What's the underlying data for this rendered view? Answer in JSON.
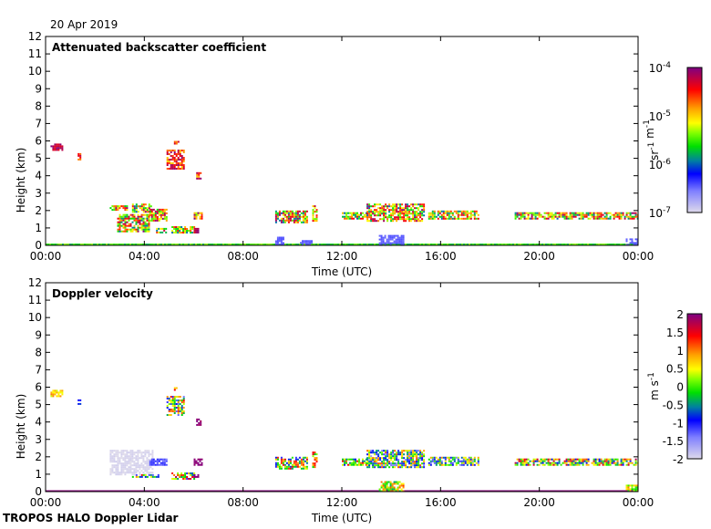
{
  "header": {
    "date": "20 Apr 2019"
  },
  "footer": {
    "instrument": "TROPOS HALO Doppler Lidar"
  },
  "chart_data": [
    {
      "type": "heatmap",
      "title": "Attenuated backscatter coefficient",
      "xlabel": "Time (UTC)",
      "ylabel": "Height (km)",
      "xlim": [
        0,
        24
      ],
      "ylim": [
        0,
        12
      ],
      "xticks": [
        0,
        4,
        8,
        12,
        16,
        20,
        24
      ],
      "xtick_labels": [
        "00:00",
        "04:00",
        "08:00",
        "12:00",
        "16:00",
        "20:00",
        "00:00"
      ],
      "yticks": [
        0,
        1,
        2,
        3,
        4,
        5,
        6,
        7,
        8,
        9,
        10,
        11,
        12
      ],
      "colorbar": {
        "label": "sr-1 m-1",
        "scale": "log",
        "range": [
          -7,
          -4
        ],
        "tick_labels": [
          {
            "base": "10",
            "exp": "-4",
            "v": -4
          },
          {
            "base": "10",
            "exp": "-5",
            "v": -5
          },
          {
            "base": "10",
            "exp": "-6",
            "v": -6
          },
          {
            "base": "10",
            "exp": "-7",
            "v": -7
          }
        ]
      },
      "patches": [
        {
          "t": [
            0.2,
            0.7
          ],
          "h": [
            5.5,
            5.85
          ],
          "v": [
            -4.4,
            -4.0
          ]
        },
        {
          "t": [
            1.3,
            1.4
          ],
          "h": [
            4.9,
            5.3
          ],
          "v": [
            -4.8,
            -4.2
          ]
        },
        {
          "t": [
            2.6,
            3.3
          ],
          "h": [
            2.0,
            2.3
          ],
          "v": [
            -5.8,
            -4.0
          ]
        },
        {
          "t": [
            2.9,
            4.2
          ],
          "h": [
            0.8,
            1.8
          ],
          "v": [
            -6.0,
            -4.0
          ]
        },
        {
          "t": [
            3.5,
            4.3
          ],
          "h": [
            1.9,
            2.4
          ],
          "v": [
            -6.0,
            -4.0
          ]
        },
        {
          "t": [
            4.2,
            4.9
          ],
          "h": [
            1.4,
            2.1
          ],
          "v": [
            -5.8,
            -4.0
          ]
        },
        {
          "t": [
            4.4,
            4.9
          ],
          "h": [
            0.7,
            1.0
          ],
          "v": [
            -6.0,
            -4.2
          ]
        },
        {
          "t": [
            4.9,
            5.6
          ],
          "h": [
            4.4,
            5.5
          ],
          "v": [
            -5.0,
            -4.0
          ]
        },
        {
          "t": [
            5.2,
            5.4
          ],
          "h": [
            5.8,
            6.0
          ],
          "v": [
            -4.8,
            -4.2
          ]
        },
        {
          "t": [
            5.1,
            6.0
          ],
          "h": [
            0.7,
            1.1
          ],
          "v": [
            -6.0,
            -4.2
          ]
        },
        {
          "t": [
            6.0,
            6.2
          ],
          "h": [
            0.7,
            1.0
          ],
          "v": [
            -4.3,
            -4.0
          ]
        },
        {
          "t": [
            6.0,
            6.3
          ],
          "h": [
            1.5,
            1.9
          ],
          "v": [
            -5.5,
            -4.0
          ]
        },
        {
          "t": [
            6.1,
            6.3
          ],
          "h": [
            3.8,
            4.2
          ],
          "v": [
            -5.0,
            -4.0
          ]
        },
        {
          "t": [
            9.3,
            10.6
          ],
          "h": [
            1.3,
            2.0
          ],
          "v": [
            -6.0,
            -4.0
          ]
        },
        {
          "t": [
            10.8,
            11.0
          ],
          "h": [
            1.4,
            2.3
          ],
          "v": [
            -5.5,
            -4.2
          ]
        },
        {
          "t": [
            12.0,
            13.0
          ],
          "h": [
            1.5,
            1.9
          ],
          "v": [
            -6.0,
            -4.2
          ]
        },
        {
          "t": [
            13.0,
            15.3
          ],
          "h": [
            1.4,
            2.4
          ],
          "v": [
            -6.0,
            -4.0
          ]
        },
        {
          "t": [
            15.5,
            17.5
          ],
          "h": [
            1.5,
            2.0
          ],
          "v": [
            -6.0,
            -4.2
          ]
        },
        {
          "t": [
            19.0,
            24.0
          ],
          "h": [
            1.5,
            1.9
          ],
          "v": [
            -6.0,
            -4.0
          ]
        },
        {
          "t": [
            0,
            24
          ],
          "h": [
            0,
            0.1
          ],
          "v": [
            -5.8,
            -5.3
          ]
        },
        {
          "t": [
            9.3,
            9.6
          ],
          "h": [
            0,
            0.5
          ],
          "v": [
            -6.5,
            -6.4
          ]
        },
        {
          "t": [
            10.3,
            10.8
          ],
          "h": [
            0,
            0.3
          ],
          "v": [
            -6.5,
            -6.4
          ]
        },
        {
          "t": [
            13.5,
            14.5
          ],
          "h": [
            0,
            0.6
          ],
          "v": [
            -6.5,
            -6.4
          ]
        },
        {
          "t": [
            23.5,
            24.0
          ],
          "h": [
            0,
            0.4
          ],
          "v": [
            -6.5,
            -6.4
          ]
        }
      ]
    },
    {
      "type": "heatmap",
      "title": "Doppler velocity",
      "xlabel": "Time (UTC)",
      "ylabel": "Height (km)",
      "xlim": [
        0,
        24
      ],
      "ylim": [
        0,
        12
      ],
      "xticks": [
        0,
        4,
        8,
        12,
        16,
        20,
        24
      ],
      "xtick_labels": [
        "00:00",
        "04:00",
        "08:00",
        "12:00",
        "16:00",
        "20:00",
        "00:00"
      ],
      "yticks": [
        0,
        1,
        2,
        3,
        4,
        5,
        6,
        7,
        8,
        9,
        10,
        11,
        12
      ],
      "colorbar": {
        "label": "m s-1",
        "scale": "linear",
        "range": [
          -2,
          2
        ],
        "tick_labels": [
          {
            "base": "2",
            "v": 2
          },
          {
            "base": "1.5",
            "v": 1.5
          },
          {
            "base": "1",
            "v": 1
          },
          {
            "base": "0.5",
            "v": 0.5
          },
          {
            "base": "0",
            "v": 0
          },
          {
            "base": "-0.5",
            "v": -0.5
          },
          {
            "base": "-1",
            "v": -1
          },
          {
            "base": "-1.5",
            "v": -1.5
          },
          {
            "base": "-2",
            "v": -2
          }
        ]
      },
      "patches": [
        {
          "t": [
            0.2,
            0.7
          ],
          "h": [
            5.5,
            5.85
          ],
          "v": [
            0.3,
            1.0
          ]
        },
        {
          "t": [
            1.3,
            1.4
          ],
          "h": [
            4.9,
            5.3
          ],
          "v": [
            -1.2,
            -0.3
          ]
        },
        {
          "t": [
            2.6,
            4.3
          ],
          "h": [
            1.0,
            2.4
          ],
          "v": [
            -2.0,
            -1.9
          ]
        },
        {
          "t": [
            4.2,
            4.9
          ],
          "h": [
            1.5,
            1.9
          ],
          "v": [
            -1.4,
            -1.0
          ]
        },
        {
          "t": [
            3.5,
            4.6
          ],
          "h": [
            0.8,
            1.0
          ],
          "v": [
            -1.4,
            1.5
          ]
        },
        {
          "t": [
            4.9,
            5.6
          ],
          "h": [
            4.4,
            5.5
          ],
          "v": [
            -1.4,
            1.4
          ]
        },
        {
          "t": [
            5.2,
            5.4
          ],
          "h": [
            5.8,
            6.0
          ],
          "v": [
            0.5,
            1.5
          ]
        },
        {
          "t": [
            5.1,
            6.0
          ],
          "h": [
            0.7,
            1.1
          ],
          "v": [
            -1.2,
            2.0
          ]
        },
        {
          "t": [
            6.0,
            6.2
          ],
          "h": [
            0.7,
            1.0
          ],
          "v": [
            1.9,
            2.0
          ]
        },
        {
          "t": [
            6.0,
            6.3
          ],
          "h": [
            1.5,
            1.9
          ],
          "v": [
            1.9,
            2.0
          ]
        },
        {
          "t": [
            6.1,
            6.3
          ],
          "h": [
            3.8,
            4.2
          ],
          "v": [
            1.8,
            2.0
          ]
        },
        {
          "t": [
            9.3,
            10.6
          ],
          "h": [
            1.3,
            2.0
          ],
          "v": [
            -1.2,
            1.6
          ]
        },
        {
          "t": [
            10.8,
            11.0
          ],
          "h": [
            1.4,
            2.3
          ],
          "v": [
            -0.5,
            1.5
          ]
        },
        {
          "t": [
            12.0,
            13.0
          ],
          "h": [
            1.5,
            1.9
          ],
          "v": [
            -1.0,
            1.6
          ]
        },
        {
          "t": [
            13.0,
            15.3
          ],
          "h": [
            1.4,
            2.4
          ],
          "v": [
            -1.6,
            1.2
          ]
        },
        {
          "t": [
            15.5,
            17.5
          ],
          "h": [
            1.5,
            2.0
          ],
          "v": [
            -1.5,
            1.0
          ]
        },
        {
          "t": [
            19.0,
            24.0
          ],
          "h": [
            1.5,
            1.9
          ],
          "v": [
            -1.0,
            1.8
          ]
        },
        {
          "t": [
            0,
            24
          ],
          "h": [
            0,
            0.08
          ],
          "v": [
            1.95,
            2.0
          ]
        },
        {
          "t": [
            13.5,
            14.5
          ],
          "h": [
            0,
            0.6
          ],
          "v": [
            -0.5,
            1.2
          ]
        },
        {
          "t": [
            23.5,
            24.0
          ],
          "h": [
            0,
            0.4
          ],
          "v": [
            -0.3,
            1.0
          ]
        }
      ]
    }
  ]
}
